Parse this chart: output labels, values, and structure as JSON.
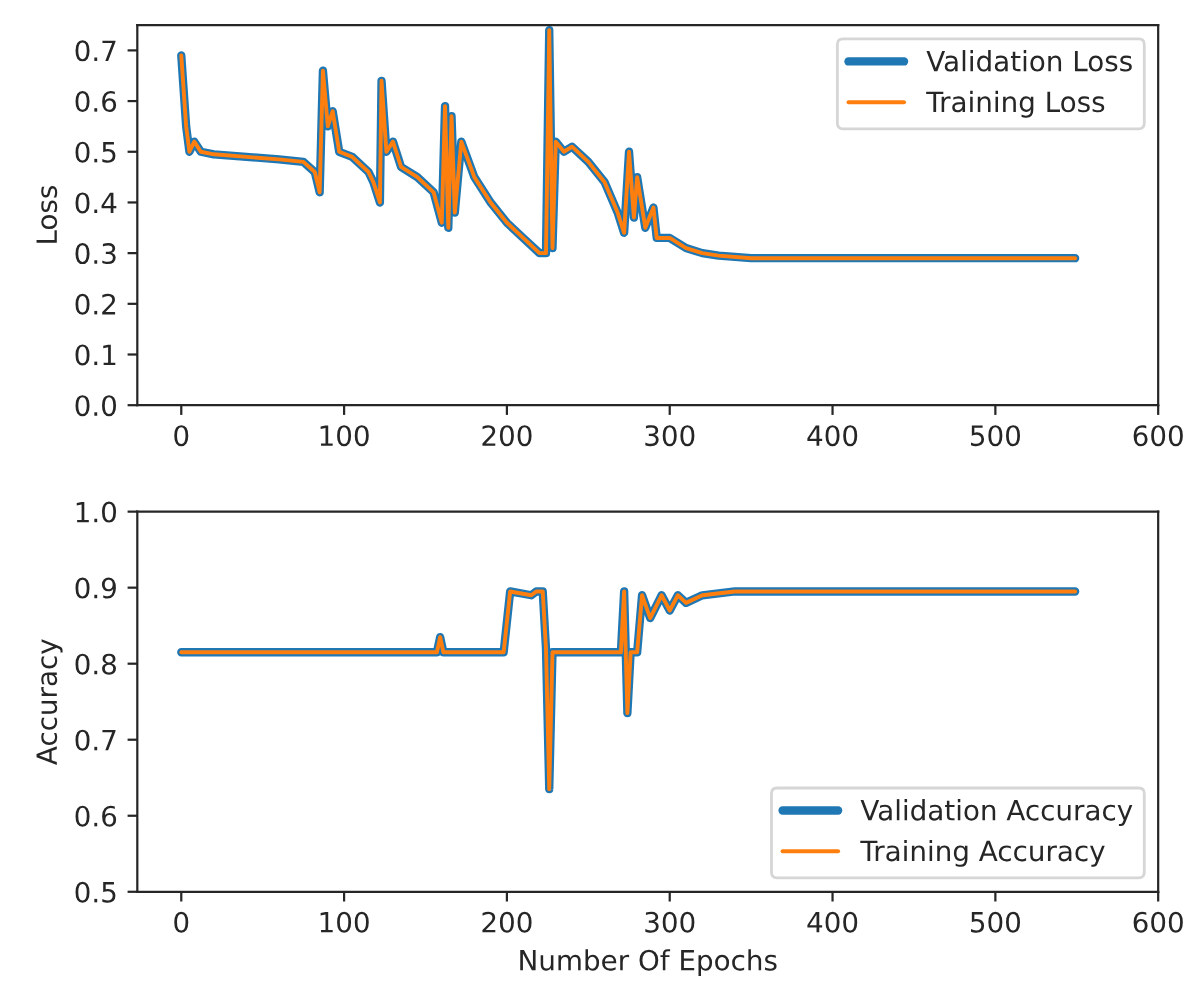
{
  "chart_data": [
    {
      "type": "line",
      "ylabel": "Loss",
      "xlim": [
        -27,
        600
      ],
      "xticks": [
        0,
        100,
        200,
        300,
        400,
        500,
        600
      ],
      "ylim": [
        0.0,
        0.75
      ],
      "yticks": [
        {
          "value": 0,
          "label": "0.0"
        },
        0.1,
        0.2,
        0.3,
        0.4,
        0.5,
        0.6,
        0.7
      ],
      "legend": "top right",
      "grid": false,
      "series": [
        {
          "name": "Validation Loss",
          "color": "#1f77b4",
          "x": [
            0,
            3,
            5,
            8,
            12,
            20,
            40,
            60,
            75,
            82,
            85,
            87,
            90,
            93,
            97,
            105,
            115,
            118,
            122,
            123,
            126,
            130,
            135,
            145,
            155,
            160,
            162,
            164,
            166,
            168,
            172,
            180,
            190,
            200,
            210,
            220,
            224,
            226,
            228,
            230,
            235,
            240,
            250,
            260,
            268,
            272,
            275,
            278,
            280,
            285,
            290,
            292,
            300,
            310,
            320,
            330,
            350,
            400,
            450,
            500,
            549
          ],
          "values": [
            0.69,
            0.55,
            0.5,
            0.52,
            0.5,
            0.495,
            0.49,
            0.485,
            0.48,
            0.46,
            0.42,
            0.66,
            0.55,
            0.58,
            0.5,
            0.49,
            0.46,
            0.44,
            0.4,
            0.64,
            0.5,
            0.52,
            0.47,
            0.45,
            0.42,
            0.36,
            0.59,
            0.35,
            0.57,
            0.38,
            0.52,
            0.45,
            0.4,
            0.36,
            0.33,
            0.3,
            0.3,
            0.74,
            0.31,
            0.52,
            0.5,
            0.51,
            0.48,
            0.44,
            0.38,
            0.34,
            0.5,
            0.37,
            0.45,
            0.35,
            0.39,
            0.33,
            0.33,
            0.31,
            0.3,
            0.295,
            0.29,
            0.29,
            0.29,
            0.29,
            0.29
          ]
        },
        {
          "name": "Training Loss",
          "color": "#ff7f0e",
          "x": [
            0,
            3,
            5,
            8,
            12,
            20,
            40,
            60,
            75,
            82,
            85,
            87,
            90,
            93,
            97,
            105,
            115,
            118,
            122,
            123,
            126,
            130,
            135,
            145,
            155,
            160,
            162,
            164,
            166,
            168,
            172,
            180,
            190,
            200,
            210,
            220,
            224,
            226,
            228,
            230,
            235,
            240,
            250,
            260,
            268,
            272,
            275,
            278,
            280,
            285,
            290,
            292,
            300,
            310,
            320,
            330,
            350,
            400,
            450,
            500,
            549
          ],
          "values": [
            0.69,
            0.55,
            0.5,
            0.52,
            0.5,
            0.495,
            0.49,
            0.485,
            0.48,
            0.46,
            0.42,
            0.66,
            0.55,
            0.58,
            0.5,
            0.49,
            0.46,
            0.44,
            0.4,
            0.64,
            0.5,
            0.52,
            0.47,
            0.45,
            0.42,
            0.36,
            0.59,
            0.35,
            0.57,
            0.38,
            0.52,
            0.45,
            0.4,
            0.36,
            0.33,
            0.3,
            0.3,
            0.74,
            0.31,
            0.52,
            0.5,
            0.51,
            0.48,
            0.44,
            0.38,
            0.34,
            0.5,
            0.37,
            0.45,
            0.35,
            0.39,
            0.33,
            0.33,
            0.31,
            0.3,
            0.295,
            0.29,
            0.29,
            0.29,
            0.29,
            0.29
          ]
        }
      ]
    },
    {
      "type": "line",
      "xlabel": "Number Of Epochs",
      "ylabel": "Accuracy",
      "xlim": [
        -27,
        600
      ],
      "xticks": [
        0,
        100,
        200,
        300,
        400,
        500,
        600
      ],
      "ylim": [
        0.5,
        1.0
      ],
      "yticks": [
        0.5,
        0.6,
        0.7,
        0.8,
        0.9,
        {
          "value": 1,
          "label": "1.0"
        }
      ],
      "legend": "bottom right",
      "grid": false,
      "series": [
        {
          "name": "Validation Accuracy",
          "color": "#1f77b4",
          "x": [
            0,
            157,
            159,
            161,
            198,
            202,
            215,
            218,
            222,
            224,
            226,
            228,
            270,
            272,
            274,
            276,
            280,
            283,
            288,
            295,
            300,
            305,
            310,
            320,
            340,
            400,
            549
          ],
          "values": [
            0.815,
            0.815,
            0.835,
            0.815,
            0.815,
            0.895,
            0.89,
            0.895,
            0.895,
            0.82,
            0.635,
            0.815,
            0.815,
            0.895,
            0.735,
            0.815,
            0.815,
            0.89,
            0.86,
            0.89,
            0.87,
            0.89,
            0.88,
            0.89,
            0.895,
            0.895,
            0.895
          ]
        },
        {
          "name": "Training Accuracy",
          "color": "#ff7f0e",
          "x": [
            0,
            157,
            159,
            161,
            198,
            202,
            215,
            218,
            222,
            224,
            226,
            228,
            270,
            272,
            274,
            276,
            280,
            283,
            288,
            295,
            300,
            305,
            310,
            320,
            340,
            400,
            549
          ],
          "values": [
            0.815,
            0.815,
            0.835,
            0.815,
            0.815,
            0.895,
            0.89,
            0.895,
            0.895,
            0.82,
            0.635,
            0.815,
            0.815,
            0.895,
            0.735,
            0.815,
            0.815,
            0.89,
            0.86,
            0.89,
            0.87,
            0.89,
            0.88,
            0.89,
            0.895,
            0.895,
            0.895
          ]
        }
      ]
    }
  ]
}
